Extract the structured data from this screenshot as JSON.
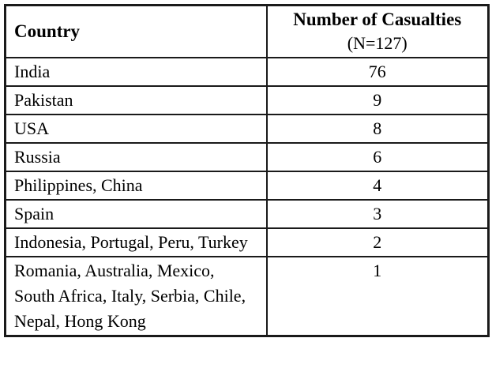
{
  "chart_data": {
    "type": "table",
    "header": {
      "country_label": "Country",
      "casualties_title": "Number of Casualties",
      "casualties_subtitle": "(N=127)"
    },
    "columns": [
      "Country",
      "Number of Casualties (N=127)"
    ],
    "total_n": 127,
    "rows": [
      {
        "country": "India",
        "casualties": "76"
      },
      {
        "country": "Pakistan",
        "casualties": "9"
      },
      {
        "country": "USA",
        "casualties": "8"
      },
      {
        "country": "Russia",
        "casualties": "6"
      },
      {
        "country": "Philippines, China",
        "casualties": "4"
      },
      {
        "country": "Spain",
        "casualties": "3"
      },
      {
        "country": "Indonesia, Portugal, Peru, Turkey",
        "casualties": "2"
      },
      {
        "country": "Romania, Australia, Mexico, South Africa, Italy, Serbia, Chile, Nepal, Hong Kong",
        "casualties": "1"
      }
    ]
  },
  "colors": {
    "border": "#1a1a1a",
    "text": "#000000",
    "background": "#ffffff"
  }
}
